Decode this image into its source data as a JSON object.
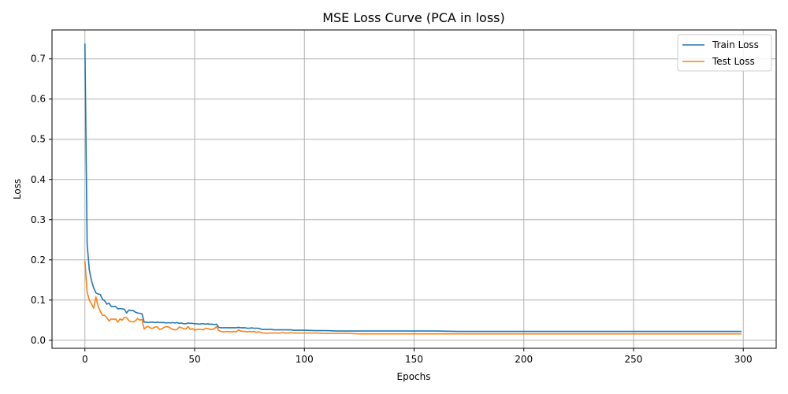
{
  "chart_data": {
    "type": "line",
    "title": "MSE Loss Curve (PCA in loss)",
    "xlabel": "Epochs",
    "ylabel": "Loss",
    "xlim": [
      -15,
      315
    ],
    "ylim": [
      -0.02,
      0.772
    ],
    "xticks": [
      0,
      50,
      100,
      150,
      200,
      250,
      300
    ],
    "xtick_labels": [
      "0",
      "50",
      "100",
      "150",
      "200",
      "250",
      "300"
    ],
    "yticks": [
      0.0,
      0.1,
      0.2,
      0.3,
      0.4,
      0.5,
      0.6,
      0.7
    ],
    "ytick_labels": [
      "0.0",
      "0.1",
      "0.2",
      "0.3",
      "0.4",
      "0.5",
      "0.6",
      "0.7"
    ],
    "grid": true,
    "legend_position": "top-right",
    "series": [
      {
        "name": "Train Loss",
        "color": "#1f77b4",
        "points": [
          [
            0,
            0.737
          ],
          [
            1,
            0.24
          ],
          [
            2,
            0.175
          ],
          [
            3,
            0.148
          ],
          [
            4,
            0.13
          ],
          [
            5,
            0.118
          ],
          [
            6,
            0.115
          ],
          [
            7,
            0.114
          ],
          [
            8,
            0.102
          ],
          [
            9,
            0.098
          ],
          [
            10,
            0.09
          ],
          [
            11,
            0.092
          ],
          [
            12,
            0.084
          ],
          [
            13,
            0.084
          ],
          [
            14,
            0.084
          ],
          [
            15,
            0.078
          ],
          [
            16,
            0.079
          ],
          [
            17,
            0.078
          ],
          [
            18,
            0.077
          ],
          [
            19,
            0.068
          ],
          [
            20,
            0.075
          ],
          [
            21,
            0.074
          ],
          [
            22,
            0.074
          ],
          [
            23,
            0.07
          ],
          [
            24,
            0.068
          ],
          [
            25,
            0.067
          ],
          [
            26,
            0.066
          ],
          [
            27,
            0.045
          ],
          [
            28,
            0.045
          ],
          [
            29,
            0.044
          ],
          [
            30,
            0.045
          ],
          [
            31,
            0.045
          ],
          [
            32,
            0.044
          ],
          [
            33,
            0.045
          ],
          [
            34,
            0.044
          ],
          [
            35,
            0.044
          ],
          [
            36,
            0.044
          ],
          [
            37,
            0.043
          ],
          [
            38,
            0.044
          ],
          [
            39,
            0.043
          ],
          [
            40,
            0.044
          ],
          [
            41,
            0.043
          ],
          [
            42,
            0.044
          ],
          [
            43,
            0.042
          ],
          [
            44,
            0.043
          ],
          [
            45,
            0.041
          ],
          [
            46,
            0.041
          ],
          [
            47,
            0.043
          ],
          [
            48,
            0.042
          ],
          [
            49,
            0.042
          ],
          [
            50,
            0.041
          ],
          [
            51,
            0.041
          ],
          [
            52,
            0.04
          ],
          [
            53,
            0.041
          ],
          [
            54,
            0.041
          ],
          [
            55,
            0.04
          ],
          [
            56,
            0.041
          ],
          [
            57,
            0.04
          ],
          [
            58,
            0.04
          ],
          [
            59,
            0.039
          ],
          [
            60,
            0.04
          ],
          [
            61,
            0.032
          ],
          [
            62,
            0.031
          ],
          [
            63,
            0.031
          ],
          [
            64,
            0.031
          ],
          [
            65,
            0.031
          ],
          [
            66,
            0.031
          ],
          [
            67,
            0.031
          ],
          [
            68,
            0.031
          ],
          [
            69,
            0.031
          ],
          [
            70,
            0.032
          ],
          [
            71,
            0.031
          ],
          [
            72,
            0.031
          ],
          [
            73,
            0.031
          ],
          [
            74,
            0.03
          ],
          [
            75,
            0.03
          ],
          [
            76,
            0.031
          ],
          [
            77,
            0.03
          ],
          [
            78,
            0.03
          ],
          [
            79,
            0.03
          ],
          [
            80,
            0.028
          ],
          [
            81,
            0.027
          ],
          [
            82,
            0.027
          ],
          [
            83,
            0.027
          ],
          [
            84,
            0.027
          ],
          [
            85,
            0.027
          ],
          [
            86,
            0.026
          ],
          [
            87,
            0.026
          ],
          [
            88,
            0.026
          ],
          [
            89,
            0.026
          ],
          [
            90,
            0.026
          ],
          [
            91,
            0.026
          ],
          [
            92,
            0.026
          ],
          [
            93,
            0.026
          ],
          [
            94,
            0.026
          ],
          [
            95,
            0.025
          ],
          [
            96,
            0.025
          ],
          [
            97,
            0.025
          ],
          [
            98,
            0.025
          ],
          [
            99,
            0.025
          ],
          [
            100,
            0.025
          ],
          [
            105,
            0.024
          ],
          [
            110,
            0.024
          ],
          [
            115,
            0.023
          ],
          [
            120,
            0.023
          ],
          [
            125,
            0.023
          ],
          [
            130,
            0.023
          ],
          [
            135,
            0.023
          ],
          [
            140,
            0.023
          ],
          [
            145,
            0.023
          ],
          [
            150,
            0.023
          ],
          [
            160,
            0.023
          ],
          [
            170,
            0.022
          ],
          [
            180,
            0.022
          ],
          [
            190,
            0.022
          ],
          [
            200,
            0.022
          ],
          [
            210,
            0.022
          ],
          [
            220,
            0.022
          ],
          [
            230,
            0.022
          ],
          [
            240,
            0.022
          ],
          [
            250,
            0.022
          ],
          [
            260,
            0.022
          ],
          [
            270,
            0.022
          ],
          [
            280,
            0.022
          ],
          [
            290,
            0.022
          ],
          [
            299,
            0.022
          ]
        ]
      },
      {
        "name": "Test Loss",
        "color": "#ff7f0e",
        "points": [
          [
            0,
            0.197
          ],
          [
            1,
            0.12
          ],
          [
            2,
            0.1
          ],
          [
            3,
            0.09
          ],
          [
            4,
            0.08
          ],
          [
            5,
            0.108
          ],
          [
            6,
            0.085
          ],
          [
            7,
            0.072
          ],
          [
            8,
            0.062
          ],
          [
            9,
            0.062
          ],
          [
            10,
            0.056
          ],
          [
            11,
            0.048
          ],
          [
            12,
            0.053
          ],
          [
            13,
            0.052
          ],
          [
            14,
            0.053
          ],
          [
            15,
            0.045
          ],
          [
            16,
            0.053
          ],
          [
            17,
            0.05
          ],
          [
            18,
            0.057
          ],
          [
            19,
            0.056
          ],
          [
            20,
            0.049
          ],
          [
            21,
            0.046
          ],
          [
            22,
            0.046
          ],
          [
            23,
            0.048
          ],
          [
            24,
            0.054
          ],
          [
            25,
            0.05
          ],
          [
            26,
            0.052
          ],
          [
            27,
            0.028
          ],
          [
            28,
            0.033
          ],
          [
            29,
            0.034
          ],
          [
            30,
            0.03
          ],
          [
            31,
            0.03
          ],
          [
            32,
            0.033
          ],
          [
            33,
            0.033
          ],
          [
            34,
            0.027
          ],
          [
            35,
            0.028
          ],
          [
            36,
            0.032
          ],
          [
            37,
            0.034
          ],
          [
            38,
            0.033
          ],
          [
            39,
            0.03
          ],
          [
            40,
            0.027
          ],
          [
            41,
            0.026
          ],
          [
            42,
            0.027
          ],
          [
            43,
            0.033
          ],
          [
            44,
            0.031
          ],
          [
            45,
            0.029
          ],
          [
            46,
            0.028
          ],
          [
            47,
            0.034
          ],
          [
            48,
            0.027
          ],
          [
            49,
            0.029
          ],
          [
            50,
            0.025
          ],
          [
            51,
            0.027
          ],
          [
            52,
            0.027
          ],
          [
            53,
            0.027
          ],
          [
            54,
            0.026
          ],
          [
            55,
            0.03
          ],
          [
            56,
            0.029
          ],
          [
            57,
            0.027
          ],
          [
            58,
            0.027
          ],
          [
            59,
            0.029
          ],
          [
            60,
            0.034
          ],
          [
            61,
            0.024
          ],
          [
            62,
            0.022
          ],
          [
            63,
            0.021
          ],
          [
            64,
            0.021
          ],
          [
            65,
            0.022
          ],
          [
            66,
            0.021
          ],
          [
            67,
            0.021
          ],
          [
            68,
            0.022
          ],
          [
            69,
            0.021
          ],
          [
            70,
            0.026
          ],
          [
            71,
            0.023
          ],
          [
            72,
            0.022
          ],
          [
            73,
            0.022
          ],
          [
            74,
            0.021
          ],
          [
            75,
            0.022
          ],
          [
            76,
            0.021
          ],
          [
            77,
            0.022
          ],
          [
            78,
            0.02
          ],
          [
            79,
            0.021
          ],
          [
            80,
            0.02
          ],
          [
            81,
            0.018
          ],
          [
            82,
            0.018
          ],
          [
            83,
            0.017
          ],
          [
            84,
            0.018
          ],
          [
            85,
            0.018
          ],
          [
            86,
            0.018
          ],
          [
            87,
            0.018
          ],
          [
            88,
            0.018
          ],
          [
            89,
            0.018
          ],
          [
            90,
            0.019
          ],
          [
            91,
            0.018
          ],
          [
            92,
            0.018
          ],
          [
            93,
            0.018
          ],
          [
            94,
            0.019
          ],
          [
            95,
            0.018
          ],
          [
            96,
            0.018
          ],
          [
            97,
            0.018
          ],
          [
            98,
            0.018
          ],
          [
            99,
            0.018
          ],
          [
            100,
            0.018
          ],
          [
            105,
            0.018
          ],
          [
            110,
            0.017
          ],
          [
            115,
            0.017
          ],
          [
            120,
            0.017
          ],
          [
            125,
            0.016
          ],
          [
            130,
            0.016
          ],
          [
            135,
            0.016
          ],
          [
            140,
            0.016
          ],
          [
            145,
            0.016
          ],
          [
            150,
            0.016
          ],
          [
            160,
            0.016
          ],
          [
            170,
            0.016
          ],
          [
            180,
            0.016
          ],
          [
            190,
            0.016
          ],
          [
            200,
            0.016
          ],
          [
            210,
            0.016
          ],
          [
            220,
            0.016
          ],
          [
            230,
            0.016
          ],
          [
            240,
            0.016
          ],
          [
            250,
            0.016
          ],
          [
            260,
            0.016
          ],
          [
            270,
            0.016
          ],
          [
            280,
            0.016
          ],
          [
            290,
            0.016
          ],
          [
            299,
            0.016
          ]
        ]
      }
    ]
  }
}
